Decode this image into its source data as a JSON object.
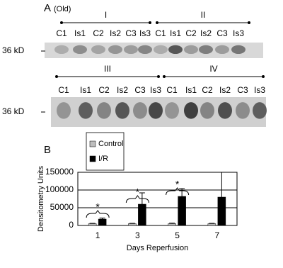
{
  "panel_a": {
    "label": "A",
    "sublabel": "(Old)",
    "blots": [
      {
        "marker": "36 kD",
        "groups": [
          {
            "label": "I",
            "lanes": [
              "C1",
              "Is1",
              "C2",
              "Is2",
              "C3",
              "Is3"
            ]
          },
          {
            "label": "II",
            "lanes": [
              "C1",
              "Is1",
              "C2",
              "Is2",
              "C3",
              "Is3"
            ]
          }
        ]
      },
      {
        "marker": "36 kD",
        "groups": [
          {
            "label": "III",
            "lanes": [
              "C1",
              "Is1",
              "C2",
              "Is2",
              "C3",
              "Is3"
            ]
          },
          {
            "label": "IV",
            "lanes": [
              "C1",
              "Is1",
              "C2",
              "Is2",
              "C3",
              "Is3"
            ]
          }
        ]
      }
    ]
  },
  "chart_data": {
    "type": "bar",
    "panel_label": "B",
    "x_label": "Days Reperfusion",
    "y_label": "Densitometry Units",
    "categories": [
      "1",
      "3",
      "5",
      "7"
    ],
    "series": [
      {
        "name": "Control",
        "color": "#bdbdbd",
        "values": [
          5000,
          5000,
          5000,
          5000
        ],
        "errors": [
          1000,
          1000,
          1500,
          1000
        ]
      },
      {
        "name": "I/R",
        "color": "#000000",
        "values": [
          18000,
          60000,
          82000,
          80000
        ],
        "errors": [
          3000,
          32000,
          22000,
          70000
        ]
      }
    ],
    "significance": [
      "*",
      "*",
      "*",
      null
    ],
    "ylim": [
      0,
      150000
    ],
    "yticks": [
      0,
      50000,
      100000,
      150000
    ],
    "grid": true,
    "legend": "top-left"
  }
}
